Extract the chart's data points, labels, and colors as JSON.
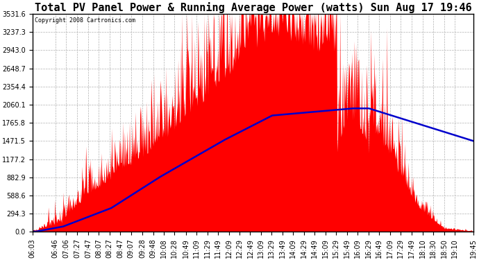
{
  "title": "Total PV Panel Power & Running Average Power (watts) Sun Aug 17 19:46",
  "copyright": "Copyright 2008 Cartronics.com",
  "ymax": 3531.9,
  "ymin": 0.0,
  "ytick_interval": 294.3,
  "background_color": "#ffffff",
  "plot_bg_color": "#ffffff",
  "grid_color": "#b0b0b0",
  "fill_color": "#ff0000",
  "avg_color": "#0000cc",
  "title_fontsize": 11,
  "tick_label_fontsize": 7,
  "x_tick_labels": [
    "06:03",
    "06:46",
    "07:06",
    "07:27",
    "07:47",
    "08:07",
    "08:27",
    "08:47",
    "09:07",
    "09:28",
    "09:48",
    "10:08",
    "10:28",
    "10:49",
    "11:09",
    "11:29",
    "11:49",
    "12:09",
    "12:29",
    "12:49",
    "13:09",
    "13:29",
    "13:49",
    "14:09",
    "14:29",
    "14:49",
    "15:09",
    "15:29",
    "15:49",
    "16:09",
    "16:29",
    "16:49",
    "17:09",
    "17:29",
    "17:49",
    "18:10",
    "18:30",
    "18:50",
    "19:10",
    "19:45"
  ]
}
